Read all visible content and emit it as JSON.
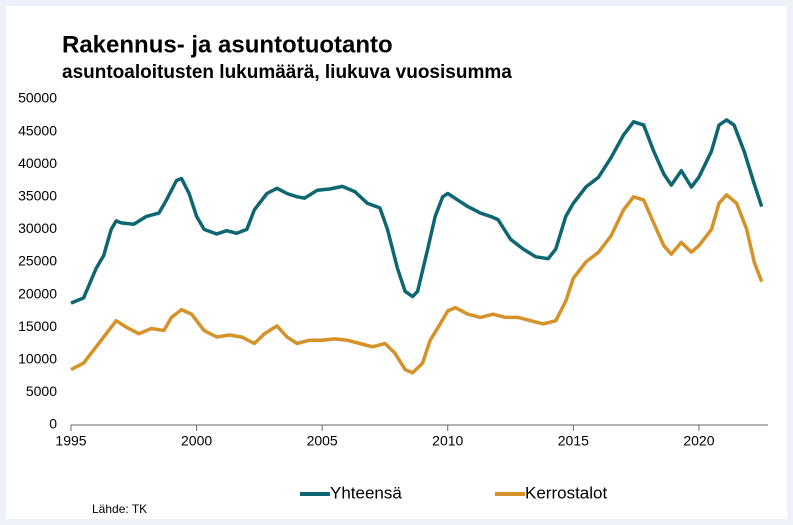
{
  "chart_data": {
    "type": "line",
    "title": "Rakennus- ja asuntotuotanto",
    "subtitle": "asuntoaloitusten lukumäärä, liukuva vuosisumma",
    "source": "Lähde: TK",
    "xlim": [
      1995,
      2022.75
    ],
    "xticks": [
      1995,
      2000,
      2005,
      2010,
      2015,
      2020
    ],
    "ylim": [
      0,
      50000
    ],
    "yticks": [
      0,
      5000,
      10000,
      15000,
      20000,
      25000,
      30000,
      35000,
      40000,
      45000,
      50000
    ],
    "legend": "bottom",
    "series": [
      {
        "name": "Yhteensä",
        "color": "#0e6672",
        "x": [
          1995.0,
          1995.5,
          1996.0,
          1996.3,
          1996.6,
          1996.8,
          1997.0,
          1997.5,
          1998.0,
          1998.5,
          1998.8,
          1999.2,
          1999.4,
          1999.7,
          2000.0,
          2000.3,
          2000.8,
          2001.2,
          2001.6,
          2002.0,
          2002.3,
          2002.8,
          2003.2,
          2003.6,
          2004.0,
          2004.3,
          2004.8,
          2005.3,
          2005.8,
          2006.3,
          2006.8,
          2007.3,
          2007.6,
          2008.0,
          2008.3,
          2008.6,
          2008.8,
          2009.2,
          2009.5,
          2009.8,
          2010.0,
          2010.4,
          2010.8,
          2011.3,
          2011.7,
          2012.0,
          2012.5,
          2013.0,
          2013.5,
          2014.0,
          2014.3,
          2014.7,
          2015.0,
          2015.5,
          2016.0,
          2016.5,
          2017.0,
          2017.4,
          2017.8,
          2018.2,
          2018.6,
          2018.9,
          2019.3,
          2019.7,
          2020.0,
          2020.5,
          2020.8,
          2021.1,
          2021.4,
          2021.8,
          2022.2,
          2022.5
        ],
        "values": [
          18700,
          19500,
          24000,
          26000,
          30000,
          31300,
          31000,
          30800,
          32000,
          32500,
          34500,
          37500,
          37800,
          35500,
          32000,
          30000,
          29300,
          29800,
          29400,
          30000,
          33000,
          35500,
          36300,
          35500,
          35000,
          34800,
          36000,
          36200,
          36600,
          35800,
          34000,
          33300,
          30000,
          24000,
          20500,
          19700,
          20500,
          27000,
          32000,
          35000,
          35500,
          34500,
          33500,
          32500,
          32000,
          31500,
          28500,
          27000,
          25800,
          25500,
          27000,
          32000,
          34000,
          36500,
          38000,
          41000,
          44500,
          46500,
          46000,
          42000,
          38500,
          36800,
          39000,
          36500,
          38000,
          42000,
          46000,
          46800,
          46000,
          42000,
          37000,
          33500
        ]
      },
      {
        "name": "Kerrostalot",
        "color": "#d49228",
        "x": [
          1995.0,
          1995.5,
          1996.0,
          1996.5,
          1996.8,
          1997.2,
          1997.7,
          1998.2,
          1998.7,
          1999.0,
          1999.4,
          1999.8,
          2000.3,
          2000.8,
          2001.3,
          2001.8,
          2002.3,
          2002.7,
          2003.2,
          2003.6,
          2004.0,
          2004.5,
          2005.0,
          2005.5,
          2006.0,
          2006.5,
          2007.0,
          2007.5,
          2007.9,
          2008.3,
          2008.6,
          2009.0,
          2009.3,
          2009.7,
          2010.0,
          2010.3,
          2010.8,
          2011.3,
          2011.8,
          2012.3,
          2012.8,
          2013.3,
          2013.8,
          2014.3,
          2014.7,
          2015.0,
          2015.5,
          2016.0,
          2016.5,
          2017.0,
          2017.4,
          2017.8,
          2018.2,
          2018.6,
          2018.9,
          2019.3,
          2019.7,
          2020.0,
          2020.5,
          2020.8,
          2021.1,
          2021.5,
          2021.9,
          2022.2,
          2022.5
        ],
        "values": [
          8500,
          9500,
          12000,
          14500,
          16000,
          15000,
          14000,
          14800,
          14500,
          16500,
          17700,
          17000,
          14500,
          13500,
          13800,
          13500,
          12500,
          14000,
          15200,
          13500,
          12500,
          13000,
          13000,
          13200,
          13000,
          12500,
          12000,
          12500,
          11000,
          8500,
          8000,
          9500,
          13000,
          15500,
          17500,
          18000,
          17000,
          16500,
          17000,
          16500,
          16500,
          16000,
          15500,
          16000,
          19000,
          22500,
          25000,
          26500,
          29000,
          33000,
          35000,
          34500,
          31000,
          27500,
          26200,
          28000,
          26500,
          27500,
          30000,
          34000,
          35300,
          34000,
          30000,
          25000,
          22000
        ]
      }
    ]
  }
}
